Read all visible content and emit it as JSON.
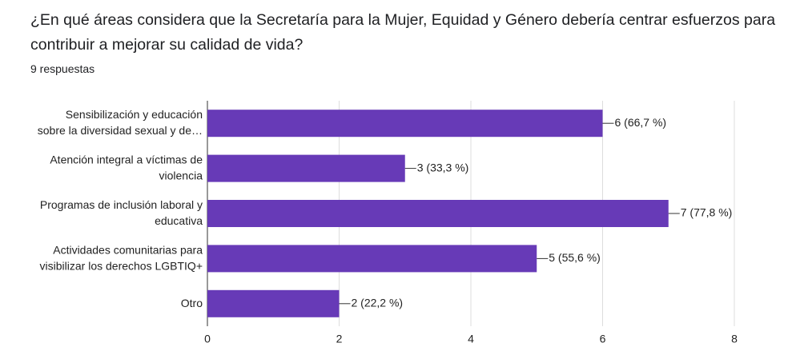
{
  "header": {
    "title": "¿En qué áreas considera que la Secretaría para la Mujer, Equidad y Género debería centrar esfuerzos para contribuir a  mejorar su calidad de vida?",
    "subtitle": "9 respuestas"
  },
  "chart_data": {
    "type": "bar",
    "orientation": "horizontal",
    "categories": [
      [
        "Sensibilización y educación",
        "sobre la diversidad sexual y de…"
      ],
      [
        "Atención integral a víctimas de",
        "violencia"
      ],
      [
        "Programas de inclusión laboral y",
        "educativa"
      ],
      [
        "Actividades comunitarias para",
        "visibilizar los derechos LGBTIQ+"
      ],
      [
        "Otro"
      ]
    ],
    "values": [
      6,
      3,
      7,
      5,
      2
    ],
    "value_labels": [
      "6 (66,7 %)",
      "3 (33,3 %)",
      "7 (77,8 %)",
      "5 (55,6 %)",
      "2 (22,2 %)"
    ],
    "color": "#673ab7",
    "xlim": [
      0,
      8
    ],
    "xticks": [
      0,
      2,
      4,
      6,
      8
    ],
    "grid": true
  }
}
